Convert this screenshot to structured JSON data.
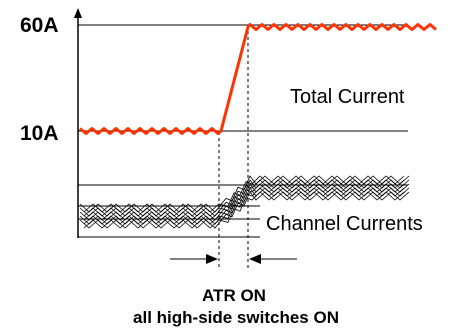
{
  "labels": {
    "level_high": "60A",
    "level_low": "10A",
    "total_current": "Total Current",
    "channel_currents": "Channel Currents",
    "caption_line1": "ATR ON",
    "caption_line2": "all high-side switches ON"
  },
  "colors": {
    "total_current_trace": "#ff3300",
    "lines": "#000000",
    "background": "#ffffff"
  }
}
